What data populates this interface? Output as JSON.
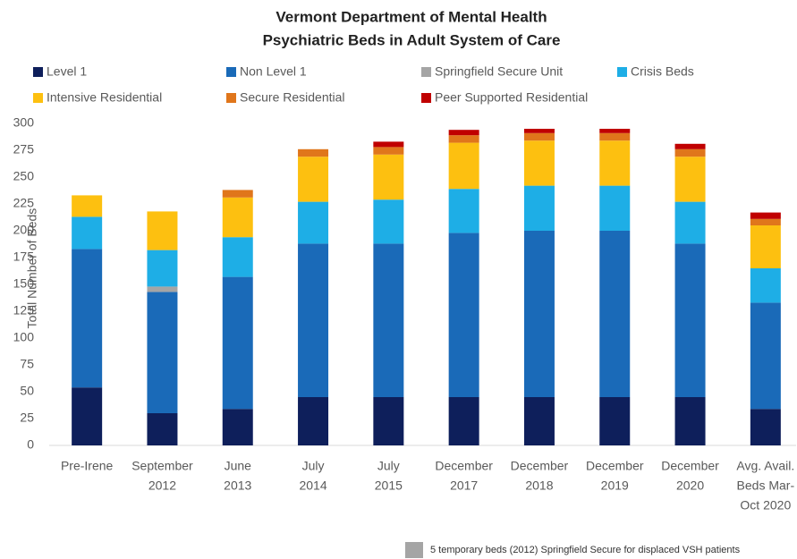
{
  "chart_data": {
    "type": "stacked_bar",
    "title": [
      "Vermont Department of Mental Health",
      "Psychiatric Beds in Adult System of Care"
    ],
    "y_label": "Total Number of Beds",
    "categories": [
      [
        "Pre-Irene"
      ],
      [
        "September",
        "2012"
      ],
      [
        "June",
        "2013"
      ],
      [
        "July",
        "2014"
      ],
      [
        "July",
        "2015"
      ],
      [
        "December",
        "2017"
      ],
      [
        "December",
        "2018"
      ],
      [
        "December",
        "2019"
      ],
      [
        "December",
        "2020"
      ],
      [
        "Avg. Avail.",
        "Beds Mar-",
        "Oct 2020"
      ]
    ],
    "series": [
      {
        "name": "Level 1",
        "color": "#0e1f5b",
        "values": [
          54,
          30,
          34,
          45,
          45,
          45,
          45,
          45,
          45,
          34
        ]
      },
      {
        "name": "Non Level 1",
        "color": "#1a6ab8",
        "values": [
          129,
          113,
          123,
          143,
          143,
          153,
          155,
          155,
          143,
          99
        ]
      },
      {
        "name": "Springfield Secure Unit",
        "color": "#a5a5a5",
        "values": [
          0,
          5,
          0,
          0,
          0,
          0,
          0,
          0,
          0,
          0
        ]
      },
      {
        "name": "Crisis Beds",
        "color": "#1eaee6",
        "values": [
          30,
          34,
          37,
          39,
          41,
          41,
          42,
          42,
          39,
          32
        ]
      },
      {
        "name": "Intensive Residential",
        "color": "#fdc010",
        "values": [
          20,
          36,
          37,
          42,
          42,
          43,
          42,
          42,
          42,
          40
        ]
      },
      {
        "name": "Secure Residential",
        "color": "#e0761b",
        "values": [
          0,
          0,
          7,
          7,
          7,
          7,
          7,
          7,
          7,
          6
        ]
      },
      {
        "name": "Peer Supported Residential",
        "color": "#c00000",
        "values": [
          0,
          0,
          0,
          0,
          5,
          5,
          4,
          4,
          5,
          6
        ]
      }
    ],
    "ylim": [
      0,
      300
    ],
    "yticks": [
      0,
      25,
      50,
      75,
      100,
      125,
      150,
      175,
      200,
      225,
      250,
      275,
      300
    ],
    "footnote": {
      "text": "5 temporary beds (2012) Springfield Secure for displaced VSH patients",
      "color": "#a5a5a5"
    }
  }
}
